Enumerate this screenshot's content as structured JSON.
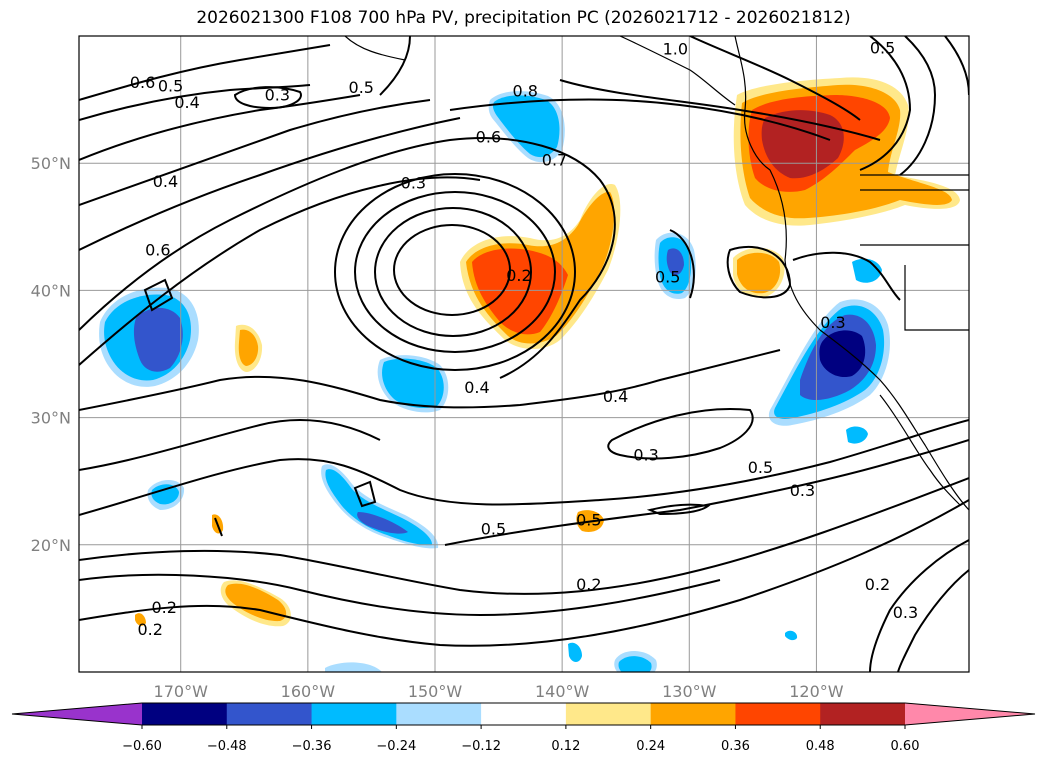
{
  "title": "2026021300 F108 700 hPa PV, precipitation PC (2026021712 - 2026021812)",
  "map": {
    "lon_range": [
      -178,
      -108
    ],
    "lat_range": [
      10,
      60
    ],
    "lat_ticks": [
      {
        "value": 50,
        "label": "50°N"
      },
      {
        "value": 40,
        "label": "40°N"
      },
      {
        "value": 30,
        "label": "30°N"
      },
      {
        "value": 20,
        "label": "20°N"
      }
    ],
    "lon_ticks": [
      {
        "value": -170,
        "label": "170°W"
      },
      {
        "value": -160,
        "label": "160°W"
      },
      {
        "value": -150,
        "label": "150°W"
      },
      {
        "value": -140,
        "label": "140°W"
      },
      {
        "value": -130,
        "label": "130°W"
      },
      {
        "value": -120,
        "label": "120°W"
      }
    ],
    "grid": true
  },
  "contour_labels": [
    {
      "text": "0.6",
      "lon": -173.0,
      "lat": 56.4
    },
    {
      "text": "0.5",
      "lon": -170.8,
      "lat": 56.1
    },
    {
      "text": "0.4",
      "lon": -169.5,
      "lat": 54.8
    },
    {
      "text": "0.3",
      "lon": -162.4,
      "lat": 55.4
    },
    {
      "text": "0.5",
      "lon": -155.8,
      "lat": 56.0
    },
    {
      "text": "0.4",
      "lon": -171.2,
      "lat": 48.6
    },
    {
      "text": "0.6",
      "lon": -171.8,
      "lat": 43.2
    },
    {
      "text": "0.3",
      "lon": -151.7,
      "lat": 48.5
    },
    {
      "text": "0.6",
      "lon": -145.8,
      "lat": 52.1
    },
    {
      "text": "0.8",
      "lon": -142.9,
      "lat": 55.7
    },
    {
      "text": "0.7",
      "lon": -140.6,
      "lat": 50.3
    },
    {
      "text": "1.0",
      "lon": -131.1,
      "lat": 59.0
    },
    {
      "text": "0.5",
      "lon": -114.8,
      "lat": 59.1
    },
    {
      "text": "0.2",
      "lon": -143.4,
      "lat": 41.2
    },
    {
      "text": "0.5",
      "lon": -131.7,
      "lat": 41.1
    },
    {
      "text": "0.4",
      "lon": -146.7,
      "lat": 32.4
    },
    {
      "text": "0.3",
      "lon": -118.7,
      "lat": 37.5
    },
    {
      "text": "0.4",
      "lon": -135.8,
      "lat": 31.7
    },
    {
      "text": "0.3",
      "lon": -133.4,
      "lat": 27.1
    },
    {
      "text": "0.5",
      "lon": -124.4,
      "lat": 26.1
    },
    {
      "text": "0.3",
      "lon": -121.1,
      "lat": 24.3
    },
    {
      "text": "0.5",
      "lon": -145.4,
      "lat": 21.3
    },
    {
      "text": "0.5",
      "lon": -137.9,
      "lat": 22.0
    },
    {
      "text": "0.2",
      "lon": -137.9,
      "lat": 16.9
    },
    {
      "text": "0.2",
      "lon": -171.3,
      "lat": 15.1
    },
    {
      "text": "0.2",
      "lon": -172.4,
      "lat": 13.4
    },
    {
      "text": "0.2",
      "lon": -115.2,
      "lat": 16.9
    },
    {
      "text": "0.3",
      "lon": -113.0,
      "lat": 14.7
    }
  ],
  "colorbar": {
    "tick_labels": [
      "−0.60",
      "−0.48",
      "−0.36",
      "−0.24",
      "−0.12",
      "0.12",
      "0.24",
      "0.36",
      "0.48",
      "0.60"
    ],
    "colors": [
      "#9933cc",
      "#000080",
      "#3355cc",
      "#00bbff",
      "#aaddff",
      "#ffffff",
      "#ffe88a",
      "#ffa500",
      "#ff4500",
      "#b22222",
      "#ff88aa"
    ]
  },
  "fills": {
    "strong_neg": "#000080",
    "mid_neg": "#3355cc",
    "neg": "#00bbff",
    "weak_neg": "#aaddff",
    "weak_pos": "#ffe88a",
    "pos": "#ffa500",
    "mid_pos": "#ff4500",
    "strong_pos": "#b22222"
  }
}
